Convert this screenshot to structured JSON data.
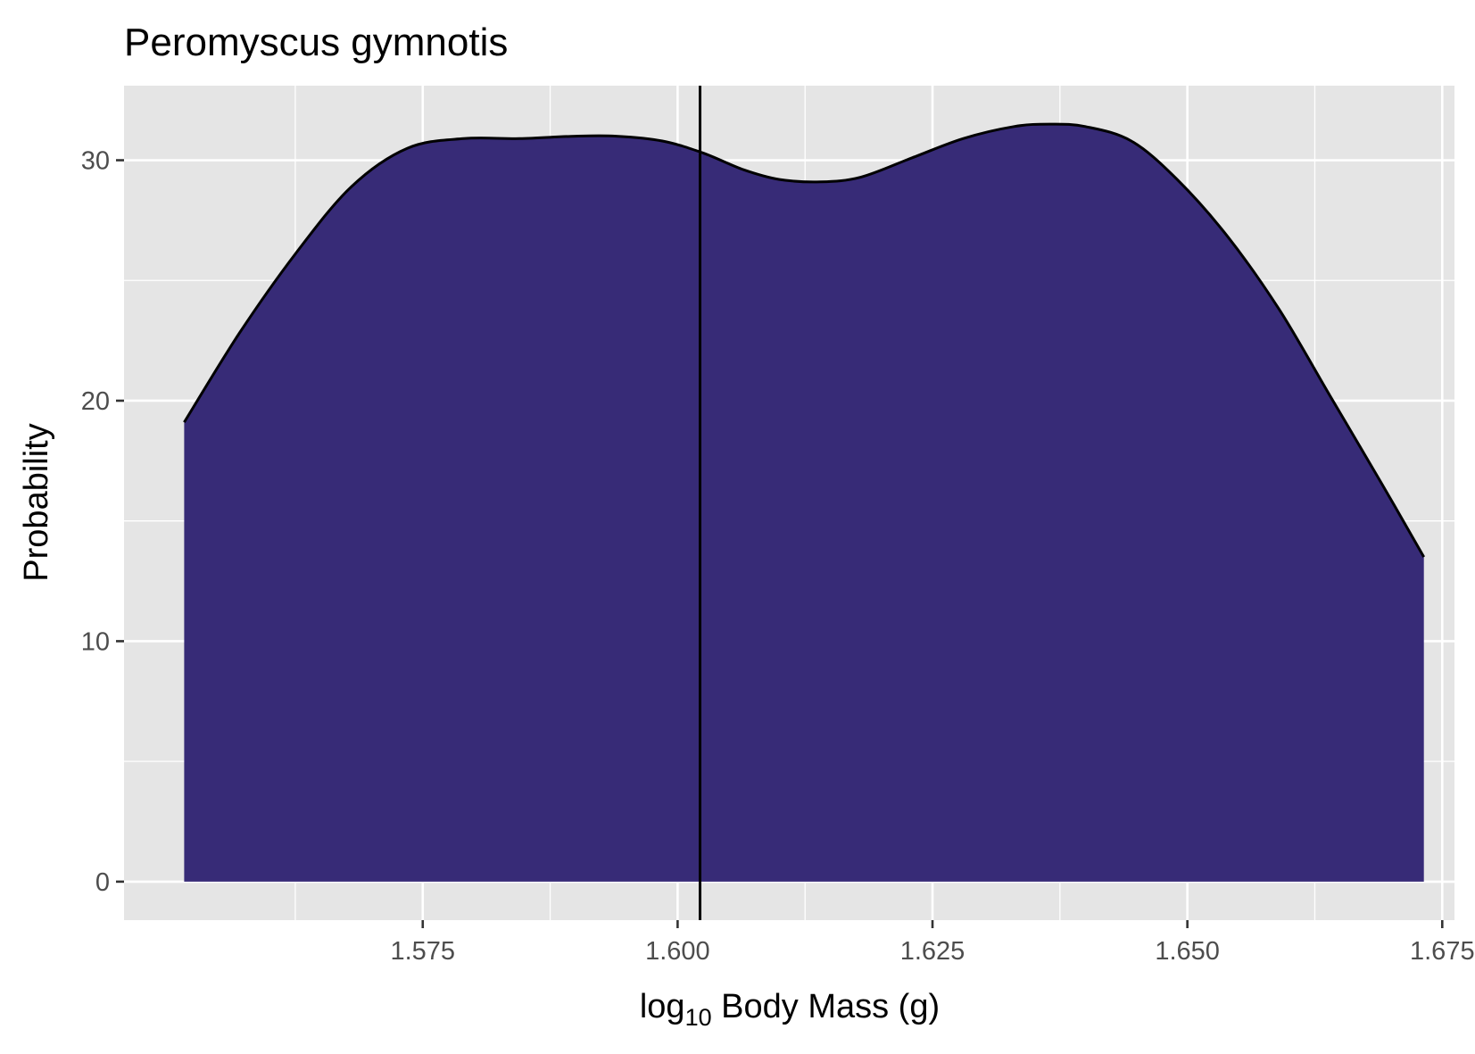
{
  "chart_data": {
    "type": "area",
    "title": "Peromyscus gymnotis",
    "xlabel": {
      "base": "log",
      "subscript": "10",
      "rest": " Body Mass (g)"
    },
    "ylabel": "Probability",
    "xlim": [
      1.5457,
      1.6762
    ],
    "ylim": [
      -1.6,
      33.1
    ],
    "x_ticks": [
      1.575,
      1.6,
      1.625,
      1.65,
      1.675
    ],
    "x_tick_labels": [
      "1.575",
      "1.600",
      "1.625",
      "1.650",
      "1.675"
    ],
    "y_ticks": [
      0,
      10,
      20,
      30
    ],
    "y_tick_labels": [
      "0",
      "10",
      "20",
      "30"
    ],
    "grid": true,
    "vline_x": 1.6022,
    "fill_color": "#372B77",
    "panel_color": "#E5E5E5",
    "series": [
      {
        "x": [
          1.5516,
          1.557,
          1.5625,
          1.568,
          1.5735,
          1.579,
          1.5845,
          1.59,
          1.594,
          1.5985,
          1.6025,
          1.6065,
          1.61,
          1.614,
          1.618,
          1.623,
          1.628,
          1.633,
          1.6365,
          1.64,
          1.6445,
          1.649,
          1.654,
          1.659,
          1.664,
          1.669,
          1.6732
        ],
        "y": [
          19.1,
          22.8,
          26.1,
          28.9,
          30.5,
          30.9,
          30.9,
          31.0,
          31.0,
          30.8,
          30.3,
          29.6,
          29.2,
          29.1,
          29.3,
          30.1,
          30.9,
          31.4,
          31.5,
          31.4,
          30.8,
          29.2,
          26.8,
          23.8,
          20.2,
          16.6,
          13.5
        ]
      }
    ]
  }
}
